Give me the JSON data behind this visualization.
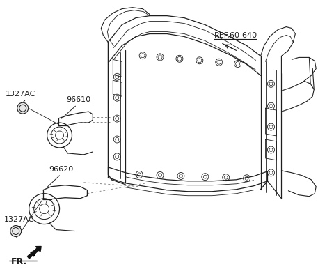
{
  "bg_color": "#ffffff",
  "fig_width": 4.8,
  "fig_height": 3.96,
  "dpi": 100,
  "labels": {
    "ref": "REF.60-640",
    "part1": "96610",
    "part2": "96620",
    "bolt1": "1327AC",
    "bolt2": "1327AC",
    "fr": "FR."
  },
  "text_color": "#1a1a1a",
  "frame_color": "#1e1e1e",
  "dashed_color": "#888888"
}
